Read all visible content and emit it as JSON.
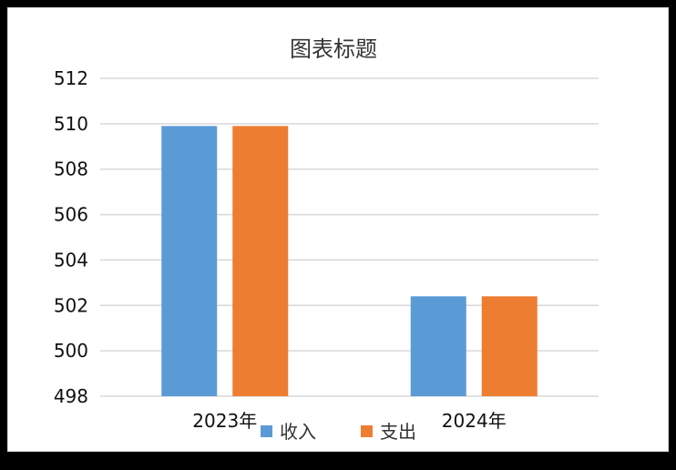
{
  "chart_data": {
    "type": "bar",
    "title": "图表标题",
    "xlabel": "",
    "ylabel": "",
    "categories": [
      "2023年",
      "2024年"
    ],
    "series": [
      {
        "name": "收入",
        "color": "#5B9BD5",
        "values": [
          509.9,
          502.4
        ]
      },
      {
        "name": "支出",
        "color": "#ED7D31",
        "values": [
          509.9,
          502.4
        ]
      }
    ],
    "ylim": [
      498,
      512
    ],
    "yticks": [
      498,
      500,
      502,
      504,
      506,
      508,
      510,
      512
    ],
    "grid": true,
    "legend": "bottom"
  }
}
